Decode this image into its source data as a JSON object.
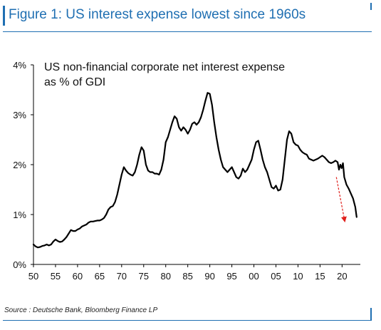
{
  "figure": {
    "title": "Figure 1: US interest expense lowest since 1960s",
    "source": "Source : Deutsche Bank, Bloomberg Finance LP"
  },
  "chart_data": {
    "type": "line",
    "title_lines": [
      "US non-financial corporate net interest expense",
      "as % of GDI"
    ],
    "xlabel": "",
    "ylabel": "",
    "xlim": [
      1950,
      2023.5
    ],
    "ylim": [
      0,
      4
    ],
    "x_ticks": [
      {
        "value": 1950,
        "label": "50"
      },
      {
        "value": 1955,
        "label": "55"
      },
      {
        "value": 1960,
        "label": "60"
      },
      {
        "value": 1965,
        "label": "65"
      },
      {
        "value": 1970,
        "label": "70"
      },
      {
        "value": 1975,
        "label": "75"
      },
      {
        "value": 1980,
        "label": "80"
      },
      {
        "value": 1985,
        "label": "85"
      },
      {
        "value": 1990,
        "label": "90"
      },
      {
        "value": 1995,
        "label": "95"
      },
      {
        "value": 2000,
        "label": "00"
      },
      {
        "value": 2005,
        "label": "05"
      },
      {
        "value": 2010,
        "label": "10"
      },
      {
        "value": 2015,
        "label": "15"
      },
      {
        "value": 2020,
        "label": "20"
      }
    ],
    "y_ticks": [
      {
        "value": 0,
        "label": "0%"
      },
      {
        "value": 1,
        "label": "1%"
      },
      {
        "value": 2,
        "label": "2%"
      },
      {
        "value": 3,
        "label": "3%"
      },
      {
        "value": 4,
        "label": "4%"
      }
    ],
    "grid": false,
    "legend": "none",
    "series": [
      {
        "color": "#000000",
        "points": [
          [
            1950.0,
            0.4
          ],
          [
            1950.5,
            0.36
          ],
          [
            1951.0,
            0.34
          ],
          [
            1951.5,
            0.35
          ],
          [
            1952.0,
            0.37
          ],
          [
            1952.5,
            0.38
          ],
          [
            1953.0,
            0.4
          ],
          [
            1953.5,
            0.38
          ],
          [
            1954.0,
            0.4
          ],
          [
            1954.5,
            0.46
          ],
          [
            1955.0,
            0.5
          ],
          [
            1955.5,
            0.47
          ],
          [
            1956.0,
            0.45
          ],
          [
            1956.5,
            0.46
          ],
          [
            1957.0,
            0.5
          ],
          [
            1957.5,
            0.55
          ],
          [
            1958.0,
            0.62
          ],
          [
            1958.5,
            0.69
          ],
          [
            1959.0,
            0.67
          ],
          [
            1959.5,
            0.67
          ],
          [
            1960.0,
            0.7
          ],
          [
            1960.5,
            0.72
          ],
          [
            1961.0,
            0.76
          ],
          [
            1961.5,
            0.78
          ],
          [
            1962.0,
            0.8
          ],
          [
            1962.5,
            0.84
          ],
          [
            1963.0,
            0.86
          ],
          [
            1963.5,
            0.86
          ],
          [
            1964.0,
            0.87
          ],
          [
            1964.5,
            0.88
          ],
          [
            1965.0,
            0.88
          ],
          [
            1965.5,
            0.9
          ],
          [
            1966.0,
            0.93
          ],
          [
            1966.5,
            1.0
          ],
          [
            1967.0,
            1.1
          ],
          [
            1967.5,
            1.15
          ],
          [
            1968.0,
            1.17
          ],
          [
            1968.5,
            1.25
          ],
          [
            1969.0,
            1.4
          ],
          [
            1969.5,
            1.6
          ],
          [
            1970.0,
            1.8
          ],
          [
            1970.5,
            1.95
          ],
          [
            1971.0,
            1.88
          ],
          [
            1971.5,
            1.83
          ],
          [
            1972.0,
            1.8
          ],
          [
            1972.5,
            1.78
          ],
          [
            1973.0,
            1.85
          ],
          [
            1973.5,
            2.0
          ],
          [
            1974.0,
            2.2
          ],
          [
            1974.5,
            2.35
          ],
          [
            1975.0,
            2.28
          ],
          [
            1975.5,
            2.0
          ],
          [
            1976.0,
            1.88
          ],
          [
            1976.5,
            1.85
          ],
          [
            1977.0,
            1.85
          ],
          [
            1977.5,
            1.82
          ],
          [
            1978.0,
            1.82
          ],
          [
            1978.5,
            1.8
          ],
          [
            1979.0,
            1.9
          ],
          [
            1979.5,
            2.1
          ],
          [
            1980.0,
            2.45
          ],
          [
            1980.5,
            2.55
          ],
          [
            1981.0,
            2.7
          ],
          [
            1981.5,
            2.85
          ],
          [
            1982.0,
            2.97
          ],
          [
            1982.5,
            2.92
          ],
          [
            1983.0,
            2.75
          ],
          [
            1983.5,
            2.68
          ],
          [
            1984.0,
            2.75
          ],
          [
            1984.5,
            2.7
          ],
          [
            1985.0,
            2.62
          ],
          [
            1985.5,
            2.7
          ],
          [
            1986.0,
            2.82
          ],
          [
            1986.5,
            2.85
          ],
          [
            1987.0,
            2.8
          ],
          [
            1987.5,
            2.85
          ],
          [
            1988.0,
            2.95
          ],
          [
            1988.5,
            3.1
          ],
          [
            1989.0,
            3.28
          ],
          [
            1989.5,
            3.44
          ],
          [
            1990.0,
            3.42
          ],
          [
            1990.5,
            3.2
          ],
          [
            1991.0,
            2.85
          ],
          [
            1991.5,
            2.55
          ],
          [
            1992.0,
            2.3
          ],
          [
            1992.5,
            2.1
          ],
          [
            1993.0,
            1.95
          ],
          [
            1993.5,
            1.9
          ],
          [
            1994.0,
            1.85
          ],
          [
            1994.5,
            1.9
          ],
          [
            1995.0,
            1.95
          ],
          [
            1995.5,
            1.85
          ],
          [
            1996.0,
            1.75
          ],
          [
            1996.5,
            1.72
          ],
          [
            1997.0,
            1.78
          ],
          [
            1997.5,
            1.92
          ],
          [
            1998.0,
            1.85
          ],
          [
            1998.5,
            1.9
          ],
          [
            1999.0,
            2.0
          ],
          [
            1999.5,
            2.1
          ],
          [
            2000.0,
            2.3
          ],
          [
            2000.5,
            2.45
          ],
          [
            2001.0,
            2.48
          ],
          [
            2001.5,
            2.3
          ],
          [
            2002.0,
            2.1
          ],
          [
            2002.5,
            1.95
          ],
          [
            2003.0,
            1.85
          ],
          [
            2003.5,
            1.7
          ],
          [
            2004.0,
            1.55
          ],
          [
            2004.5,
            1.52
          ],
          [
            2005.0,
            1.58
          ],
          [
            2005.5,
            1.48
          ],
          [
            2006.0,
            1.5
          ],
          [
            2006.5,
            1.7
          ],
          [
            2007.0,
            2.1
          ],
          [
            2007.5,
            2.5
          ],
          [
            2008.0,
            2.67
          ],
          [
            2008.5,
            2.62
          ],
          [
            2009.0,
            2.45
          ],
          [
            2009.5,
            2.4
          ],
          [
            2010.0,
            2.38
          ],
          [
            2010.5,
            2.3
          ],
          [
            2011.0,
            2.25
          ],
          [
            2011.5,
            2.22
          ],
          [
            2012.0,
            2.2
          ],
          [
            2012.5,
            2.12
          ],
          [
            2013.0,
            2.1
          ],
          [
            2013.5,
            2.08
          ],
          [
            2014.0,
            2.1
          ],
          [
            2014.5,
            2.12
          ],
          [
            2015.0,
            2.15
          ],
          [
            2015.5,
            2.18
          ],
          [
            2016.0,
            2.15
          ],
          [
            2016.5,
            2.1
          ],
          [
            2017.0,
            2.05
          ],
          [
            2017.5,
            2.03
          ],
          [
            2018.0,
            2.05
          ],
          [
            2018.5,
            2.08
          ],
          [
            2019.0,
            2.05
          ],
          [
            2019.3,
            1.9
          ],
          [
            2019.6,
            2.0
          ],
          [
            2019.9,
            1.93
          ],
          [
            2020.2,
            2.03
          ],
          [
            2020.5,
            1.75
          ],
          [
            2021.0,
            1.6
          ],
          [
            2021.5,
            1.52
          ],
          [
            2022.0,
            1.42
          ],
          [
            2022.5,
            1.32
          ],
          [
            2023.0,
            1.15
          ],
          [
            2023.3,
            0.95
          ]
        ]
      }
    ],
    "annotations": [
      {
        "type": "arrow",
        "color": "#e0201c",
        "from": [
          2018.7,
          1.75
        ],
        "to": [
          2020.6,
          0.87
        ]
      }
    ]
  }
}
